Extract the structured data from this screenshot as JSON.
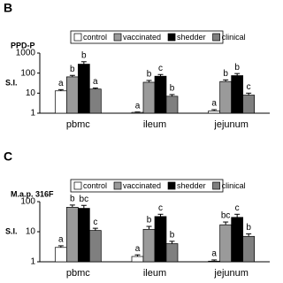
{
  "chart_data": [
    {
      "type": "bar",
      "panel": "B",
      "title": "PPD-P",
      "ylabel": "S.I.",
      "log_scale": true,
      "categories": [
        "pbmc",
        "ileum",
        "jejunum"
      ],
      "ylim": [
        1,
        1000
      ],
      "yticks": [
        1,
        10,
        100,
        1000
      ],
      "legend": "top",
      "series": [
        {
          "name": "control",
          "color": "#ffffff",
          "values": [
            13,
            1.1,
            1.3
          ],
          "errors": [
            2,
            0.05,
            0.2
          ],
          "letters": [
            "a",
            "a",
            "a"
          ]
        },
        {
          "name": "vaccinated",
          "color": "#9a9a9a",
          "values": [
            65,
            35,
            38
          ],
          "errors": [
            12,
            8,
            8
          ],
          "letters": [
            "b",
            "b",
            "b"
          ]
        },
        {
          "name": "shedder",
          "color": "#000000",
          "values": [
            280,
            70,
            75
          ],
          "errors": [
            90,
            15,
            20
          ],
          "letters": [
            "b",
            "c",
            "b"
          ]
        },
        {
          "name": "clinical",
          "color": "#7f7f7f",
          "values": [
            16,
            7,
            8
          ],
          "errors": [
            2,
            1.5,
            2
          ],
          "letters": [
            "a",
            "b",
            "c"
          ]
        }
      ]
    },
    {
      "type": "bar",
      "panel": "C",
      "title": "M.a.p. 316F",
      "ylabel": "S.I.",
      "log_scale": true,
      "categories": [
        "pbmc",
        "ileum",
        "jejunum"
      ],
      "ylim": [
        1,
        100
      ],
      "yticks": [
        1,
        10,
        100
      ],
      "legend": "top",
      "series": [
        {
          "name": "control",
          "color": "#ffffff",
          "values": [
            3,
            1.5,
            1.05
          ],
          "errors": [
            0.4,
            0.2,
            0.1
          ],
          "letters": [
            "a",
            "a",
            "a"
          ]
        },
        {
          "name": "vaccinated",
          "color": "#9a9a9a",
          "values": [
            65,
            12,
            17
          ],
          "errors": [
            12,
            3,
            4
          ],
          "letters": [
            "b",
            "b",
            "bc"
          ]
        },
        {
          "name": "shedder",
          "color": "#000000",
          "values": [
            60,
            32,
            30
          ],
          "errors": [
            15,
            6,
            8
          ],
          "letters": [
            "bc",
            "c",
            "c"
          ]
        },
        {
          "name": "clinical",
          "color": "#7f7f7f",
          "values": [
            11,
            4,
            7
          ],
          "errors": [
            2,
            0.8,
            1.5
          ],
          "letters": [
            "c",
            "b",
            "b"
          ]
        }
      ]
    }
  ]
}
